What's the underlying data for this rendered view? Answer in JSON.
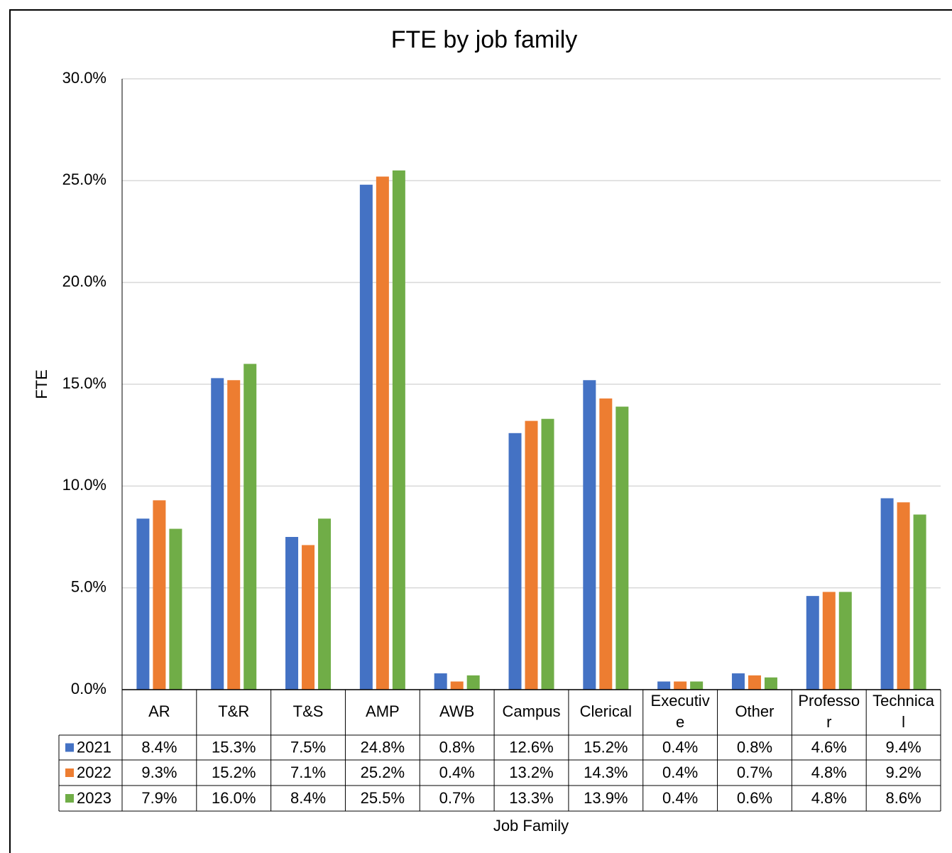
{
  "chart_data": {
    "type": "bar",
    "title": "FTE by job family",
    "y_label": "FTE",
    "x_label": "Job Family",
    "categories": [
      "AR",
      "T&R",
      "T&S",
      "AMP",
      "AWB",
      "Campus",
      "Clerical",
      "Executive",
      "Other",
      "Professor",
      "Technical"
    ],
    "series": [
      {
        "name": "2021",
        "color": "#4472c4",
        "values": [
          8.4,
          15.3,
          7.5,
          24.8,
          0.8,
          12.6,
          15.2,
          0.4,
          0.8,
          4.6,
          9.4
        ],
        "value_labels": [
          "8.4%",
          "15.3%",
          "7.5%",
          "24.8%",
          "0.8%",
          "12.6%",
          "15.2%",
          "0.4%",
          "0.8%",
          "4.6%",
          "9.4%"
        ]
      },
      {
        "name": "2022",
        "color": "#ed7d31",
        "values": [
          9.3,
          15.2,
          7.1,
          25.2,
          0.4,
          13.2,
          14.3,
          0.4,
          0.7,
          4.8,
          9.2
        ],
        "value_labels": [
          "9.3%",
          "15.2%",
          "7.1%",
          "25.2%",
          "0.4%",
          "13.2%",
          "14.3%",
          "0.4%",
          "0.7%",
          "4.8%",
          "9.2%"
        ]
      },
      {
        "name": "2023",
        "color": "#70ad47",
        "values": [
          7.9,
          16.0,
          8.4,
          25.5,
          0.7,
          13.3,
          13.9,
          0.4,
          0.6,
          4.8,
          8.6
        ],
        "value_labels": [
          "7.9%",
          "16.0%",
          "8.4%",
          "25.5%",
          "0.7%",
          "13.3%",
          "13.9%",
          "0.4%",
          "0.6%",
          "4.8%",
          "8.6%"
        ]
      }
    ],
    "ylim": [
      0,
      30
    ],
    "yticks": [
      {
        "value": 0,
        "label": "0.0%"
      },
      {
        "value": 5,
        "label": "5.0%"
      },
      {
        "value": 10,
        "label": "10.0%"
      },
      {
        "value": 15,
        "label": "15.0%"
      },
      {
        "value": 20,
        "label": "20.0%"
      },
      {
        "value": 25,
        "label": "25.0%"
      },
      {
        "value": 30,
        "label": "30.0%"
      }
    ],
    "grid": true
  }
}
